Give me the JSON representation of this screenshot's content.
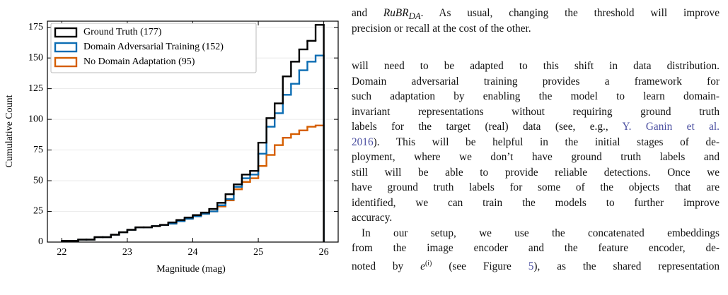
{
  "chart_data": {
    "type": "step-histogram",
    "xlabel": "Magnitude (mag)",
    "ylabel": "Cumulative Count",
    "bins": [
      22,
      22.125,
      22.25,
      22.375,
      22.5,
      22.625,
      22.75,
      22.875,
      23,
      23.125,
      23.25,
      23.375,
      23.5,
      23.625,
      23.75,
      23.875,
      24,
      24.125,
      24.25,
      24.375,
      24.5,
      24.625,
      24.75,
      24.875,
      25,
      25.125,
      25.25,
      25.375,
      25.5,
      25.625,
      25.75,
      25.875,
      26
    ],
    "series": [
      {
        "name": "Ground Truth (177)",
        "color": "#000000",
        "values": [
          1,
          1,
          2,
          2,
          4,
          4,
          6,
          8,
          10,
          12,
          12,
          13,
          14,
          16,
          18,
          20,
          22,
          24,
          27,
          32,
          39,
          47,
          55,
          58,
          81,
          101,
          113,
          135,
          147,
          157,
          164,
          177
        ]
      },
      {
        "name": "Domain Adversarial Training (152)",
        "color": "#0c6db3",
        "values": [
          1,
          1,
          2,
          2,
          4,
          4,
          6,
          8,
          10,
          12,
          12,
          13,
          14,
          15,
          17,
          19,
          21,
          23,
          25,
          30,
          35,
          45,
          52,
          55,
          72,
          94,
          105,
          120,
          129,
          140,
          147,
          152
        ]
      },
      {
        "name": "No Domain Adaptation (95)",
        "color": "#d55e00",
        "values": [
          1,
          1,
          2,
          2,
          4,
          4,
          6,
          8,
          10,
          12,
          12,
          13,
          14,
          15,
          17,
          19,
          21,
          23,
          25,
          29,
          34,
          43,
          49,
          52,
          62,
          71,
          79,
          85,
          88,
          91,
          94,
          95
        ]
      }
    ],
    "xlim": [
      21.78,
      26.22
    ],
    "ylim": [
      0,
      180
    ],
    "xticks": [
      22,
      23,
      24,
      25,
      26
    ],
    "yticks": [
      0,
      25,
      50,
      75,
      100,
      125,
      150,
      175
    ],
    "grid": true,
    "legend": "upper left"
  },
  "text": {
    "intro": {
      "pre": "and ",
      "math": "RuBR",
      "sub": "DA",
      "post": ". As usual, changing the threshold will improve",
      "line2": "precision or recall at the cost of the other."
    },
    "paragraph1": [
      [
        "will need to be adapted to this shift in data distribution."
      ],
      [
        "Domain adversarial training provides a framework for"
      ],
      [
        "such adaptation by enabling the model to learn domain-"
      ],
      [
        "invariant representations without requiring ground truth"
      ],
      [
        "labels for the target (real) data (see, e.g., ",
        "Y. Ganin et al."
      ],
      [
        "2016",
        ").  This will be helpful in the initial stages of de-"
      ],
      [
        "ployment, where we don’t have ground truth labels and"
      ],
      [
        "still will be able to provide reliable detections. Once we"
      ],
      [
        "have ground truth labels for some of the objects that are"
      ],
      [
        "identified, we can train the models to further improve"
      ],
      [
        "accuracy."
      ]
    ],
    "paragraph2": [
      [
        "In our setup, we use the concatenated embeddings"
      ],
      [
        "from the image encoder and the feature encoder, de-"
      ],
      [
        "noted by ",
        "e",
        "(i)",
        " (see Figure ",
        "5",
        "), as the shared representation"
      ]
    ]
  }
}
